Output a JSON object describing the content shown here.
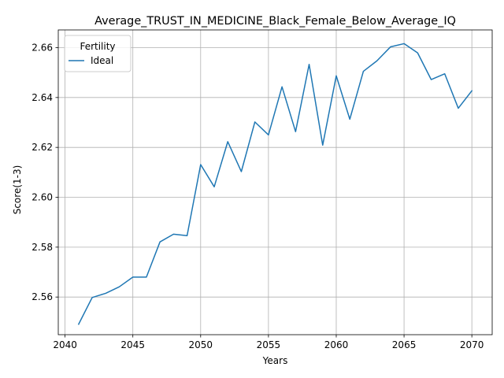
{
  "chart_data": {
    "type": "line",
    "title": "Average_TRUST_IN_MEDICINE_Black_Female_Below_Average_IQ",
    "xlabel": "Years",
    "ylabel": "Score(1-3)",
    "xlim": [
      2039.5,
      2071.5
    ],
    "ylim": [
      2.5449,
      2.6671
    ],
    "xticks": [
      2040,
      2045,
      2050,
      2055,
      2060,
      2065,
      2070
    ],
    "yticks": [
      2.56,
      2.58,
      2.6,
      2.62,
      2.64,
      2.66
    ],
    "ytick_labels": [
      "2.56",
      "2.58",
      "2.60",
      "2.62",
      "2.64",
      "2.66"
    ],
    "grid": true,
    "legend": {
      "title": "Fertility",
      "placement": "upper-left"
    },
    "series": [
      {
        "name": "Ideal",
        "color": "#1f77b4",
        "x": [
          2041,
          2042,
          2043,
          2044,
          2045,
          2046,
          2047,
          2048,
          2049,
          2050,
          2051,
          2052,
          2053,
          2054,
          2055,
          2056,
          2057,
          2058,
          2059,
          2060,
          2061,
          2062,
          2063,
          2064,
          2065,
          2066,
          2067,
          2068,
          2069,
          2070
        ],
        "y": [
          2.5491,
          2.5598,
          2.5615,
          2.5641,
          2.568,
          2.568,
          2.5821,
          2.5852,
          2.5846,
          2.6131,
          2.6042,
          2.6223,
          2.6103,
          2.6302,
          2.625,
          2.6443,
          2.6263,
          2.6533,
          2.6209,
          2.6487,
          2.6313,
          2.6505,
          2.6547,
          2.6603,
          2.6616,
          2.6579,
          2.6472,
          2.6495,
          2.6357,
          2.6427
        ]
      }
    ]
  }
}
